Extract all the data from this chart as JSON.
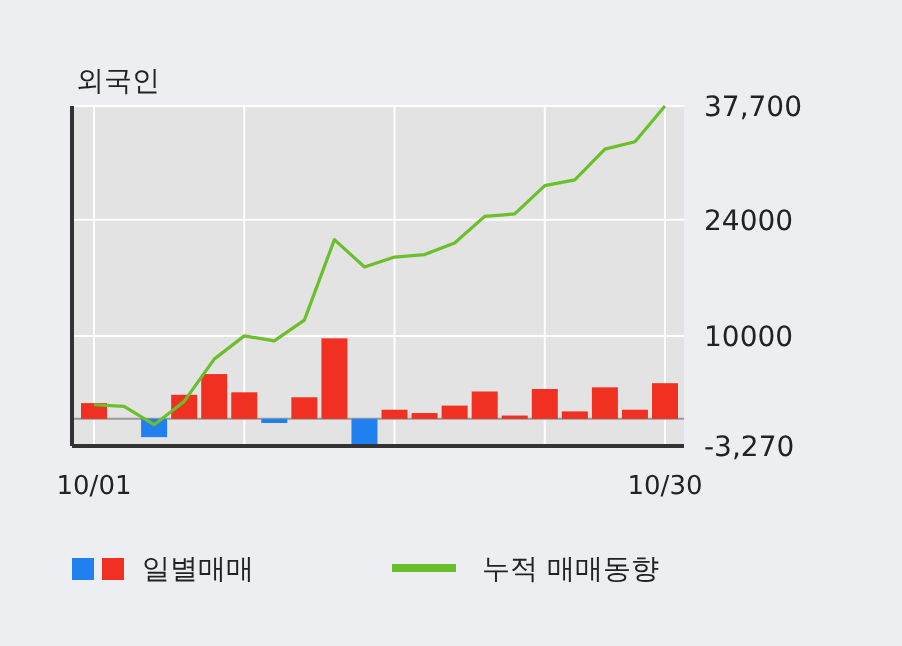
{
  "chart_data": {
    "type": "bar",
    "title": "외국인",
    "categories": [
      "10/01",
      null,
      null,
      null,
      null,
      null,
      null,
      null,
      null,
      null,
      null,
      null,
      null,
      null,
      null,
      null,
      null,
      null,
      null,
      "10/30"
    ],
    "series": [
      {
        "name": "일별매매",
        "colors": [
          "#f03020",
          "#f03020",
          "#2080f0",
          "#f03020",
          "#f03020",
          "#f03020",
          "#2080f0",
          "#f03020",
          "#f03020",
          "#2080f0",
          "#f03020",
          "#f03020",
          "#f03020",
          "#f03020",
          "#f03020",
          "#f03020",
          "#f03020",
          "#f03020",
          "#f03020",
          "#f03020"
        ],
        "values": [
          1900,
          0,
          -2200,
          2900,
          5400,
          3200,
          -500,
          2600,
          9700,
          -3200,
          1100,
          700,
          1600,
          3300,
          400,
          3600,
          900,
          3800,
          1100,
          4300
        ]
      },
      {
        "name": "누적 매매동향",
        "type": "line",
        "color": "#6abf2a",
        "values": [
          1700,
          1500,
          -700,
          2100,
          7200,
          10000,
          9400,
          11900,
          21600,
          18300,
          19500,
          19800,
          21200,
          24400,
          24700,
          28100,
          28800,
          32500,
          33400,
          37700
        ]
      }
    ],
    "ylim": [
      -3270,
      37700
    ],
    "yticks": [
      {
        "value": -3270,
        "label": "-3,270"
      },
      10000,
      24000,
      {
        "value": 37700,
        "label": "37,700"
      }
    ],
    "grid": true,
    "legend": "bottom"
  }
}
